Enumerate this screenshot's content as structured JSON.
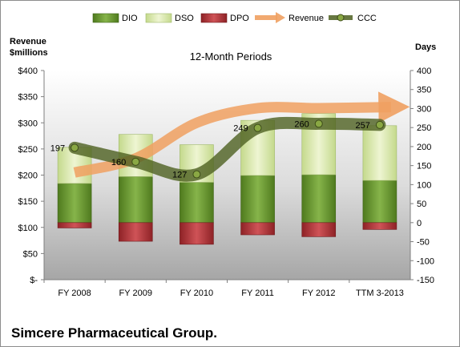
{
  "chart_data": {
    "type": "bar",
    "title": "12-Month Periods",
    "company": "Simcere Pharmaceutical Group.",
    "ylabel_left": "Revenue\n$millions",
    "ylabel_right": "Days",
    "categories": [
      "FY 2008",
      "FY 2009",
      "FY 2010",
      "FY 2011",
      "FY 2012",
      "TTM 3-2013"
    ],
    "y_left_ticks": [
      "$-",
      "$50",
      "$100",
      "$150",
      "$200",
      "$250",
      "$300",
      "$350",
      "$400"
    ],
    "y_right_ticks": [
      "-150",
      "-100",
      "-50",
      "0",
      "50",
      "100",
      "150",
      "200",
      "250",
      "300",
      "350",
      "400"
    ],
    "ylim_left": [
      0,
      400
    ],
    "ylim_right": [
      -150,
      400
    ],
    "legend_position": "top",
    "grid": false,
    "series": [
      {
        "name": "DIO",
        "type": "bar",
        "axis": "right",
        "color": "#6a9a2c",
        "values": [
          103,
          121,
          106,
          124,
          126,
          111
        ]
      },
      {
        "name": "DSO",
        "type": "bar",
        "axis": "right",
        "color": "#dbe9b0",
        "values": [
          95,
          111,
          99,
          145,
          161,
          144
        ]
      },
      {
        "name": "DPO",
        "type": "bar",
        "axis": "right",
        "color": "#b8383c",
        "values": [
          -14,
          -49,
          -57,
          -32,
          -37,
          -18
        ]
      },
      {
        "name": "Revenue",
        "type": "line",
        "axis": "left",
        "color": "#f0a060",
        "values": [
          205,
          232,
          300,
          328,
          328,
          330
        ]
      },
      {
        "name": "CCC",
        "type": "line",
        "axis": "right",
        "color": "#5a6e28",
        "values": [
          197,
          160,
          127,
          249,
          260,
          257
        ],
        "labels": [
          "197",
          "160",
          "127",
          "249",
          "260",
          "257"
        ]
      }
    ]
  }
}
